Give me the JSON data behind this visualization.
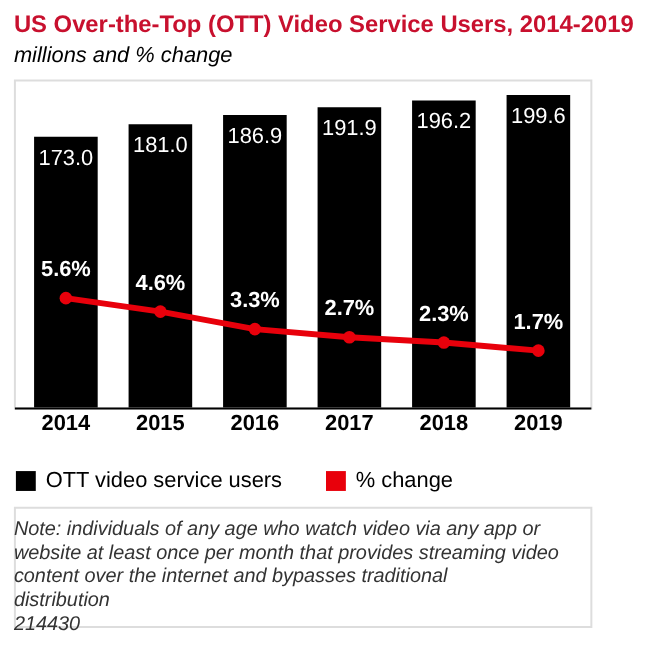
{
  "chart_data": {
    "type": "bar",
    "title": "US Over-the-Top (OTT) Video Service Users, 2014-2019",
    "subtitle": "millions and % change",
    "categories": [
      "2014",
      "2015",
      "2016",
      "2017",
      "2018",
      "2019"
    ],
    "series": [
      {
        "name": "OTT video service users",
        "color": "#000000",
        "values": [
          173.0,
          181.0,
          186.9,
          191.9,
          196.2,
          199.6
        ],
        "value_labels": [
          "173.0",
          "181.0",
          "186.9",
          "191.9",
          "196.2",
          "199.6"
        ]
      },
      {
        "name": "% change",
        "type": "line",
        "axis": "y2",
        "color": "#e8000b",
        "marker": "circle",
        "values": [
          5.6,
          4.6,
          3.3,
          2.7,
          2.3,
          1.7
        ],
        "value_labels": [
          "5.6%",
          "4.6%",
          "3.3%",
          "2.7%",
          "2.3%",
          "1.7%"
        ]
      }
    ],
    "legend": "bottom",
    "annotations": [
      "Note: individuals of any age who watch video via any app or website at least once per month that provides streaming video content over the internet and bypasses traditional distribution",
      "214430"
    ]
  }
}
